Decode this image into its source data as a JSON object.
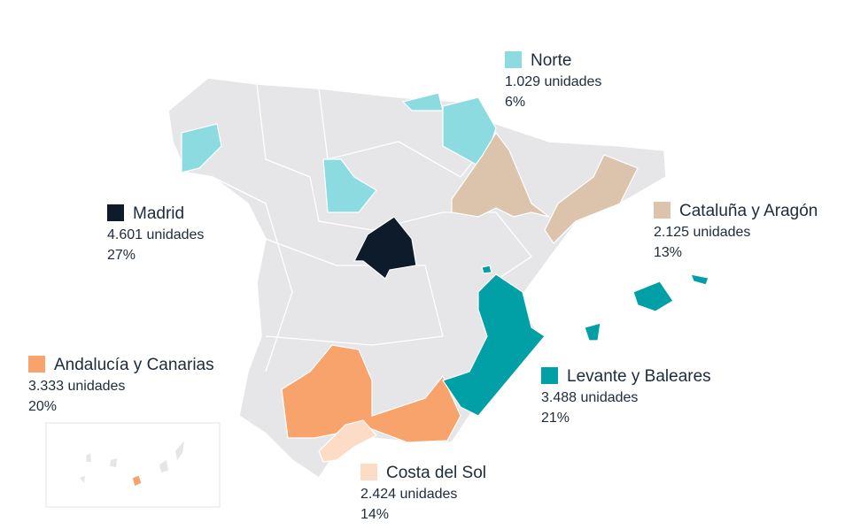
{
  "regions": [
    {
      "name": "Norte",
      "units": "1.029 unidades",
      "share": "6%",
      "color": "#8bdbe0"
    },
    {
      "name": "Madrid",
      "units": "4.601 unidades",
      "share": "27%",
      "color": "#0d1b2a"
    },
    {
      "name": "Cataluña y Aragón",
      "units": "2.125 unidades",
      "share": "13%",
      "color": "#dcc3ac"
    },
    {
      "name": "Andalucía y Canarias",
      "units": "3.333 unidades",
      "share": "20%",
      "color": "#f9a36c"
    },
    {
      "name": "Levante y Baleares",
      "units": "3.488 unidades",
      "share": "21%",
      "color": "#00a0a6"
    },
    {
      "name": "Costa del Sol",
      "units": "2.424 unidades",
      "share": "14%",
      "color": "#fcdcc7"
    }
  ]
}
